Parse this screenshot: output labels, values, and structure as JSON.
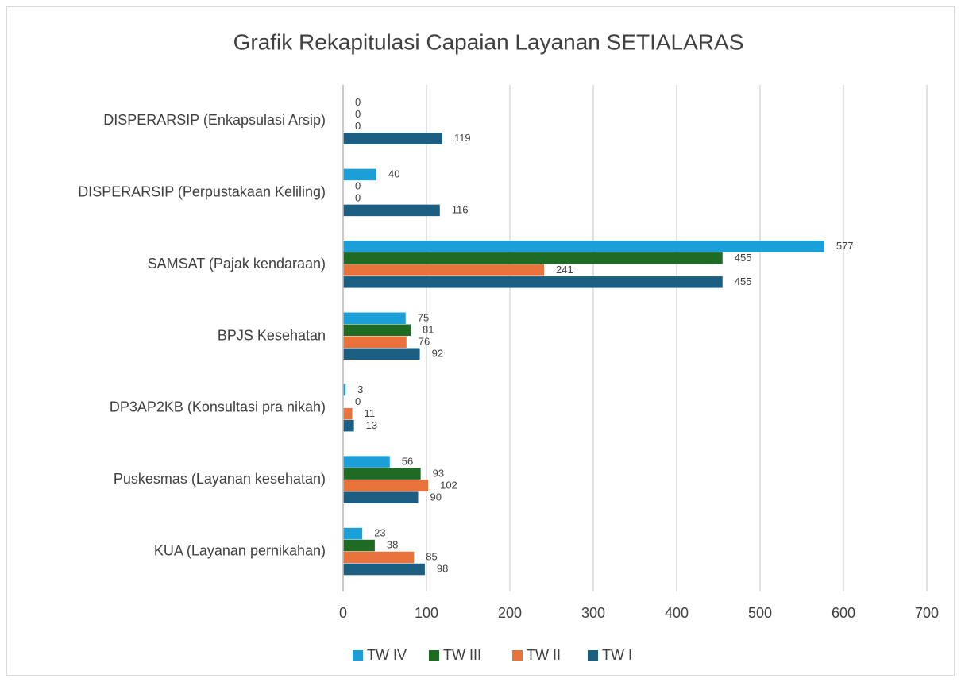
{
  "chart_data": {
    "type": "hbar",
    "title": "Grafik Rekapitulasi Capaian Layanan SETIALARAS",
    "categories": [
      "DISPERARSIP (Enkapsulasi Arsip)",
      "DISPERARSIP (Perpustakaan Keliling)",
      "SAMSAT (Pajak kendaraan)",
      "BPJS Kesehatan",
      "DP3AP2KB (Konsultasi pra nikah)",
      "Puskesmas (Layanan kesehatan)",
      "KUA (Layanan pernikahan)"
    ],
    "series": [
      {
        "name": "TW IV",
        "color": "#1b9fd8",
        "values": [
          0,
          40,
          577,
          75,
          3,
          56,
          23
        ]
      },
      {
        "name": "TW III",
        "color": "#1e6b24",
        "values": [
          0,
          0,
          455,
          81,
          0,
          93,
          38
        ]
      },
      {
        "name": "TW II",
        "color": "#e9733a",
        "values": [
          0,
          0,
          241,
          76,
          11,
          102,
          85
        ]
      },
      {
        "name": "TW I",
        "color": "#1b5e82",
        "values": [
          119,
          116,
          455,
          92,
          13,
          90,
          98
        ]
      }
    ],
    "xlim": [
      0,
      700
    ],
    "xticks": [
      0,
      100,
      200,
      300,
      400,
      500,
      600,
      700
    ],
    "grid": true,
    "legend": "bottom"
  }
}
